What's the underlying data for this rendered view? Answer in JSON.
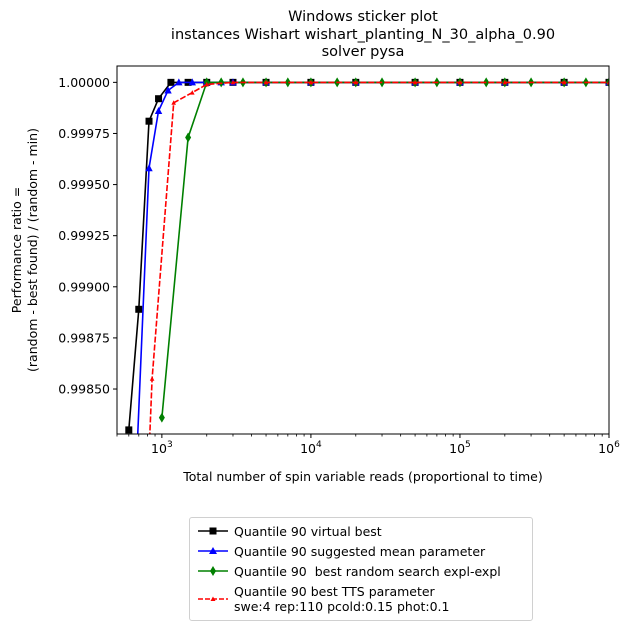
{
  "chart_data": {
    "type": "line",
    "title": "Windows sticker plot",
    "subtitle_lines": [
      "instances Wishart wishart_planting_N_30_alpha_0.90",
      "solver pysa"
    ],
    "xlabel": "Total number of spin variable reads (proportional to time)",
    "ylabel_lines": [
      "Performance ratio =",
      "(random - best found) / (random - min)"
    ],
    "xscale": "log",
    "xlim": [
      500,
      1000000
    ],
    "ylim": [
      0.99828,
      1.00008
    ],
    "yticks": [
      0.9985,
      0.99875,
      0.999,
      0.99925,
      0.9995,
      0.99975,
      1.0
    ],
    "ytick_labels": [
      "0.99850",
      "0.99875",
      "0.99900",
      "0.99925",
      "0.99950",
      "0.99975",
      "1.00000"
    ],
    "xticks": [
      1000,
      10000,
      100000,
      1000000
    ],
    "xtick_labels": [
      "10^3",
      "10^4",
      "10^5",
      "10^6"
    ],
    "grid": false,
    "legend_position": "below plot",
    "series": [
      {
        "name": "Quantile 90 virtual best",
        "color": "#000000",
        "marker": "square",
        "x": [
          600,
          700,
          820,
          950,
          1150,
          1500,
          2000,
          3000,
          5000,
          10000,
          20000,
          50000,
          100000,
          200000,
          500000,
          1000000
        ],
        "y": [
          0.9983,
          0.99889,
          0.99981,
          0.99992,
          1.0,
          1.0,
          1.0,
          1.0,
          1.0,
          1.0,
          1.0,
          1.0,
          1.0,
          1.0,
          1.0,
          1.0
        ]
      },
      {
        "name": "Quantile 90 suggested mean parameter",
        "color": "#0000ff",
        "marker": "triangle",
        "x": [
          680,
          820,
          950,
          1100,
          1300,
          1600,
          2000,
          2500,
          3000,
          5000,
          10000,
          20000,
          50000,
          100000,
          200000,
          500000,
          1000000
        ],
        "y": [
          0.99818,
          0.99958,
          0.99986,
          0.99996,
          1.0,
          1.0,
          1.0,
          1.0,
          1.0,
          1.0,
          1.0,
          1.0,
          1.0,
          1.0,
          1.0,
          1.0,
          1.0
        ]
      },
      {
        "name": "Quantile 90  best random search expl-expl",
        "color": "#008000",
        "marker": "diamond",
        "x": [
          1000,
          1500,
          2000,
          2500,
          3500,
          5000,
          7000,
          10000,
          15000,
          20000,
          30000,
          50000,
          70000,
          100000,
          150000,
          200000,
          300000,
          500000,
          700000,
          1000000
        ],
        "y": [
          0.99836,
          0.99973,
          1.0,
          1.0,
          1.0,
          1.0,
          1.0,
          1.0,
          1.0,
          1.0,
          1.0,
          1.0,
          1.0,
          1.0,
          1.0,
          1.0,
          1.0,
          1.0,
          1.0,
          1.0
        ]
      },
      {
        "name": "Quantile 90 best TTS parameter\nswe:4 rep:110 pcold:0.15 phot:0.1",
        "color": "#ff0000",
        "marker": "small-triangle",
        "x": [
          820,
          860,
          1200,
          1600,
          2000,
          3000,
          5000,
          10000,
          20000,
          50000,
          100000,
          200000,
          500000,
          1000000
        ],
        "y": [
          0.99818,
          0.99855,
          0.9999,
          0.99995,
          0.99999,
          1.0,
          1.0,
          1.0,
          1.0,
          1.0,
          1.0,
          1.0,
          1.0,
          1.0
        ]
      }
    ]
  }
}
